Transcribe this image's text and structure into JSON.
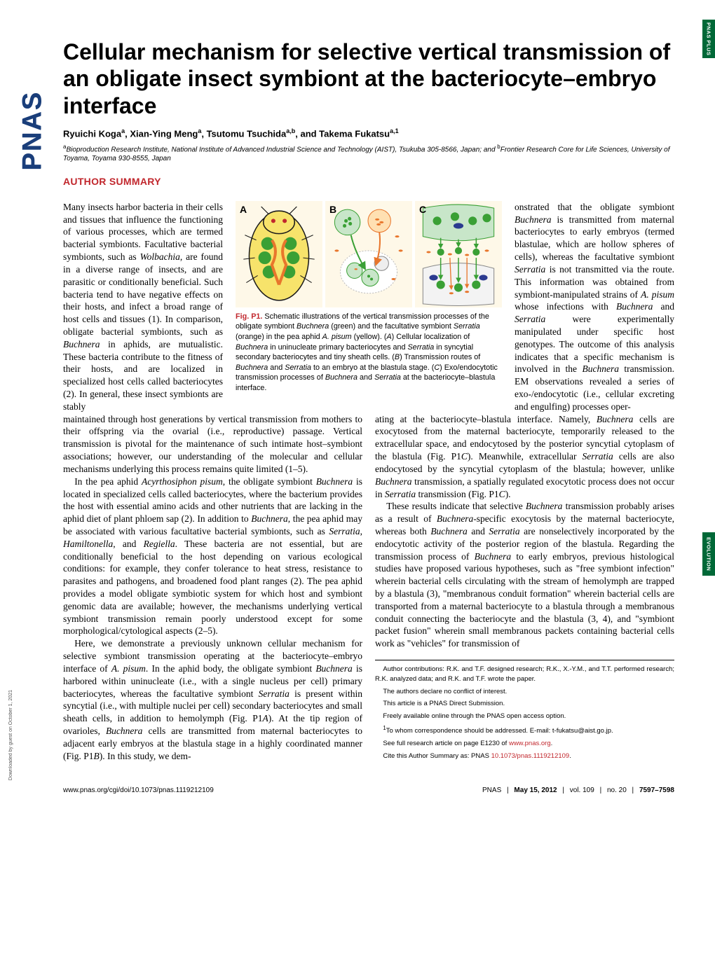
{
  "sidetabs": {
    "top": "PNAS PLUS",
    "middle": "EVOLUTION"
  },
  "logo": "PNAS",
  "title": "Cellular mechanism for selective vertical transmission of an obligate insect symbiont at the bacteriocyte–embryo interface",
  "authors_html": "Ryuichi Koga<sup>a</sup>, Xian-Ying Meng<sup>a</sup>, Tsutomu Tsuchida<sup>a,b</sup>, and Takema Fukatsu<sup>a,1</sup>",
  "affiliations_html": "<sup>a</sup>Bioproduction Research Institute, National Institute of Advanced Industrial Science and Technology (AIST), Tsukuba 305-8566, Japan; and <sup>b</sup>Frontier Research Core for Life Sciences, University of Toyama, Toyama 930-8555, Japan",
  "section_heading": "AUTHOR SUMMARY",
  "figure": {
    "label": "Fig. P1.",
    "panels": [
      "A",
      "B",
      "C"
    ],
    "caption_html": "Schematic illustrations of the vertical transmission processes of the obligate symbiont <em>Buchnera</em> (green) and the facultative symbiont <em>Serratia</em> (orange) in the pea aphid <em>A. pisum</em> (yellow). (<em>A</em>) Cellular localization of <em>Buchnera</em> in uninucleate primary bacteriocytes and <em>Serratia</em> in syncytial secondary bacteriocytes and tiny sheath cells. (<em>B</em>) Transmission routes of <em>Buchnera</em> and <em>Serratia</em> to an embryo at the blastula stage. (<em>C</em>) Exo/endocytotic transmission processes of <em>Buchnera</em> and <em>Serratia</em> at the bacteriocyte–blastula interface.",
    "colors": {
      "aphid_body": "#f7e36b",
      "buchnera": "#3aa035",
      "serratia": "#e8762c",
      "outline": "#1a1a1a",
      "nucleus": "#2b3a8f"
    }
  },
  "wrap_left_html": "Many insects harbor bacteria in their cells and tissues that influence the functioning of various processes, which are termed bacterial symbionts. Facultative bacterial symbionts, such as <em>Wolbachia</em>, are found in a diverse range of insects, and are parasitic or conditionally beneficial. Such bacteria tend to have negative effects on their hosts, and infect a broad range of host cells and tissues (1). In comparison, obligate bacterial symbionts, such as <em>Buchnera</em> in aphids, are mutualistic. These bacteria contribute to the fitness of their hosts, and are localized in specialized host cells called bacteriocytes (2). In general, these insect symbionts are stably",
  "wrap_right_html": "onstrated that the obligate symbiont <em>Buchnera</em> is transmitted from maternal bacteriocytes to early embryos (termed blastulae, which are hollow spheres of cells), whereas the facultative symbiont <em>Serratia</em> is not transmitted via the route. This information was obtained from symbiont-manipulated strains of <em>A. pisum</em> whose infections with <em>Buchnera</em> and <em>Serratia</em> were experimentally manipulated under specific host genotypes. The outcome of this analysis indicates that a specific mechanism is involved in the <em>Buchnera</em> transmission. EM observations revealed a series of exo-/endocytotic (i.e., cellular excreting and engulfing) processes oper-",
  "col1_p1_html": "maintained through host generations by vertical transmission from mothers to their offspring via the ovarial (i.e., reproductive) passage. Vertical transmission is pivotal for the maintenance of such intimate host–symbiont associations; however, our understanding of the molecular and cellular mechanisms underlying this process remains quite limited (1–5).",
  "col1_p2_html": "In the pea aphid <em>Acyrthosiphon pisum</em>, the obligate symbiont <em>Buchnera</em> is located in specialized cells called bacteriocytes, where the bacterium provides the host with essential amino acids and other nutrients that are lacking in the aphid diet of plant phloem sap (2). In addition to <em>Buchnera</em>, the pea aphid may be associated with various facultative bacterial symbionts, such as <em>Serratia</em>, <em>Hamiltonella</em>, and <em>Regiella</em>. These bacteria are not essential, but are conditionally beneficial to the host depending on various ecological conditions: for example, they confer tolerance to heat stress, resistance to parasites and pathogens, and broadened food plant ranges (2). The pea aphid provides a model obligate symbiotic system for which host and symbiont genomic data are available; however, the mechanisms underlying vertical symbiont transmission remain poorly understood except for some morphological/cytological aspects (2–5).",
  "col1_p3_html": "Here, we demonstrate a previously unknown cellular mechanism for selective symbiont transmission operating at the bacteriocyte–embryo interface of <em>A. pisum</em>. In the aphid body, the obligate symbiont <em>Buchnera</em> is harbored within uninucleate (i.e., with a single nucleus per cell) primary bacteriocytes, whereas the facultative symbiont <em>Serratia</em> is present within syncytial (i.e., with multiple nuclei per cell) secondary bacteriocytes and small sheath cells, in addition to hemolymph (Fig. P1<em>A</em>). At the tip region of ovarioles, <em>Buchnera</em> cells are transmitted from maternal bacteriocytes to adjacent early embryos at the blastula stage in a highly coordinated manner (Fig. P1<em>B</em>). In this study, we dem-",
  "col2_p1_html": "ating at the bacteriocyte–blastula interface. Namely, <em>Buchnera</em> cells are exocytosed from the maternal bacteriocyte, temporarily released to the extracellular space, and endocytosed by the posterior syncytial cytoplasm of the blastula (Fig. P1<em>C</em>). Meanwhile, extracellular <em>Serratia</em> cells are also endocytosed by the syncytial cytoplasm of the blastula; however, unlike <em>Buchnera</em> transmission, a spatially regulated exocytotic process does not occur in <em>Serratia</em> transmission (Fig. P1<em>C</em>).",
  "col2_p2_html": "These results indicate that selective <em>Buchnera</em> transmission probably arises as a result of <em>Buchnera</em>-specific exocytosis by the maternal bacteriocyte, whereas both <em>Buchnera</em> and <em>Serratia</em> are nonselectively incorporated by the endocytotic activity of the posterior region of the blastula. Regarding the transmission process of <em>Buchnera</em> to early embryos, previous histological studies have proposed various hypotheses, such as \"free symbiont infection\" wherein bacterial cells circulating with the stream of hemolymph are trapped by a blastula (3), \"membranous conduit formation\" wherein bacterial cells are transported from a maternal bacteriocyte to a blastula through a membranous conduit connecting the bacteriocyte and the blastula (3, 4), and \"symbiont packet fusion\" wherein small membranous packets containing bacterial cells work as \"vehicles\" for transmission of",
  "footnotes": {
    "contrib": "Author contributions: R.K. and T.F. designed research; R.K., X.-Y.M., and T.T. performed research; R.K. analyzed data; and R.K. and T.F. wrote the paper.",
    "conflict": "The authors declare no conflict of interest.",
    "direct": "This article is a PNAS Direct Submission.",
    "openaccess": "Freely available online through the PNAS open access option.",
    "corresp_html": "<sup>1</sup>To whom correspondence should be addressed. E-mail: t-fukatsu@aist.go.jp.",
    "fullarticle_html": "See full research article on page E1230 of <a href='#'>www.pnas.org</a>.",
    "cite_html": "Cite this Author Summary as: PNAS <a href='#'>10.1073/pnas.1119212109</a>."
  },
  "footer": {
    "left": "www.pnas.org/cgi/doi/10.1073/pnas.1119212109",
    "right_html": "PNAS <span class='sep'>|</span> <b>May 15, 2012</b> <span class='sep'>|</span> vol. 109 <span class='sep'>|</span> no. 20 <span class='sep'>|</span> <b>7597–7598</b>"
  },
  "download_note": "Downloaded by guest on October 1, 2021"
}
